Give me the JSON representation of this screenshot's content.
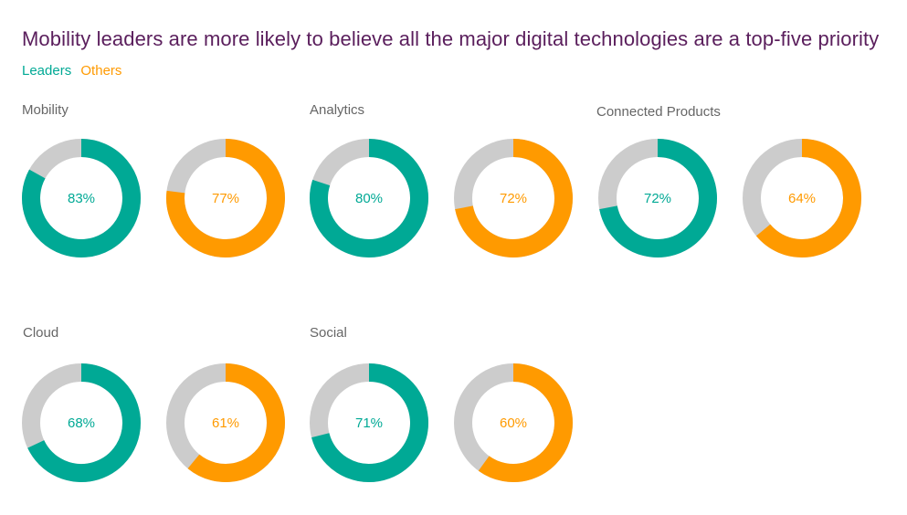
{
  "chart_data": {
    "type": "pie",
    "subtype": "donut",
    "title": "Mobility leaders are more likely to believe all the major digital technologies are a top-five priority",
    "legend": [
      {
        "name": "Leaders",
        "color": "#00a995"
      },
      {
        "name": "Others",
        "color": "#ff9a00"
      }
    ],
    "legend_placement": "top-left",
    "remainder_color": "#cccccc",
    "groups": [
      {
        "label": "Mobility",
        "leaders": 83,
        "others": 77
      },
      {
        "label": "Analytics",
        "leaders": 80,
        "others": 72
      },
      {
        "label": "Connected Products",
        "leaders": 72,
        "others": 64
      },
      {
        "label": "Cloud",
        "leaders": 68,
        "others": 61
      },
      {
        "label": "Social",
        "leaders": 71,
        "others": 60
      }
    ],
    "unit": "%"
  }
}
